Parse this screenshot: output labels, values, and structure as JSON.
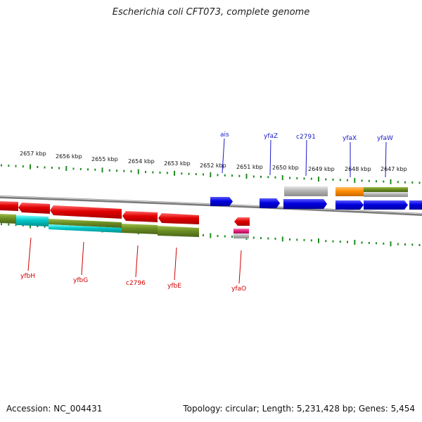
{
  "title": "Escherichia coli CFT073, complete genome",
  "footer": {
    "accession": "Accession: NC_004431",
    "summary": "Topology: circular; Length: 5,231,428 bp; Genes: 5,454"
  },
  "ruler_labels": [
    "2657 kbp",
    "2656 kbp",
    "2655 kbp",
    "2654 kbp",
    "2653 kbp",
    "2652 kbp",
    "2651 kbp",
    "2650 kbp",
    "2649 kbp",
    "2648 kbp",
    "2647 kbp"
  ],
  "genes_top": [
    "ais",
    "yfaZ",
    "c2791",
    "yfaX",
    "yfaW"
  ],
  "genes_bottom": [
    "yfbH",
    "yfbG",
    "c2796",
    "yfbE",
    "yfaO"
  ],
  "colors": {
    "cds": "#e00000",
    "cds_forward": "#0000e0",
    "cog_a": "#6b8e23",
    "cog_b": "#00c8c8",
    "cog_c": "#ff8c00",
    "pseudo": "#b4b4b4",
    "rna": "#e0207a",
    "tick": "#228b22",
    "backbone": "#8c8c8c"
  }
}
